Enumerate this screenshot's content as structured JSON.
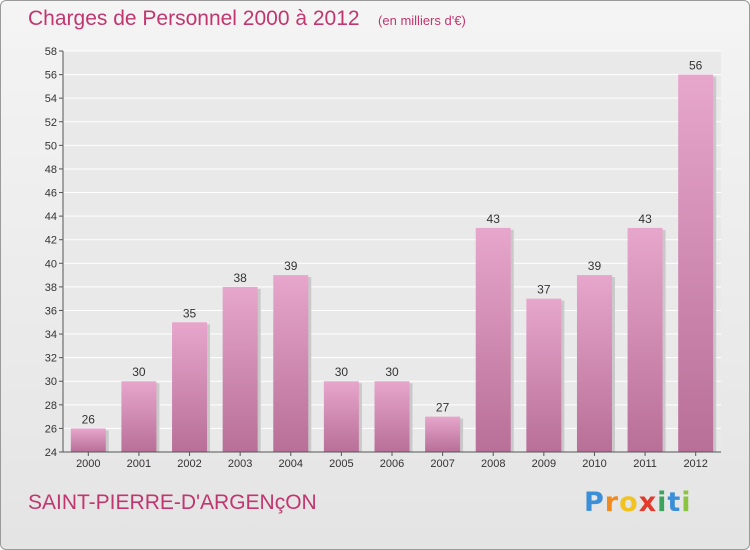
{
  "header": {
    "title": "Charges de Personnel 2000 à 2012",
    "unit": "(en milliers d'€)"
  },
  "footer": {
    "commune": "SAINT-PIERRE-D'ARGENçON",
    "brand": "Proxiti",
    "brand_letters": [
      {
        "ch": "P",
        "color": "#3b8fd8"
      },
      {
        "ch": "r",
        "color": "#f08a1e"
      },
      {
        "ch": "o",
        "color": "#f2c21e"
      },
      {
        "ch": "x",
        "color": "#e23a2b"
      },
      {
        "ch": "i",
        "color": "#3aa35c"
      },
      {
        "ch": "t",
        "color": "#3b8fd8"
      },
      {
        "ch": "i",
        "color": "#8bc43f"
      }
    ]
  },
  "colors": {
    "accent": "#c2366f",
    "bar_top": "#e7a6cc",
    "bar_bottom": "#b86f98"
  },
  "chart_data": {
    "type": "bar",
    "title": "Charges de Personnel 2000 à 2012",
    "subtitle": "(en milliers d'€)",
    "xlabel": "",
    "ylabel": "",
    "categories": [
      "2000",
      "2001",
      "2002",
      "2003",
      "2004",
      "2005",
      "2006",
      "2007",
      "2008",
      "2009",
      "2010",
      "2011",
      "2012"
    ],
    "values": [
      26,
      30,
      35,
      38,
      39,
      30,
      30,
      27,
      43,
      37,
      39,
      43,
      56
    ],
    "ylim": [
      24,
      58
    ],
    "yticks": [
      24,
      26,
      28,
      30,
      32,
      34,
      36,
      38,
      40,
      42,
      44,
      46,
      48,
      50,
      52,
      54,
      56,
      58
    ],
    "grid": true,
    "legend": "none"
  }
}
